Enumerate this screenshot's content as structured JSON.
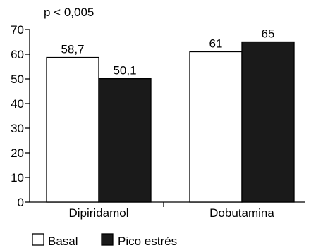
{
  "chart_data": {
    "type": "bar",
    "title": "",
    "annotation": "p < 0,005",
    "xlabel": "",
    "ylabel": "",
    "categories": [
      "Dipiridamol",
      "Dobutamina"
    ],
    "series": [
      {
        "name": "Basal",
        "values": [
          58.7,
          61
        ],
        "labels": [
          "58,7",
          "61"
        ],
        "color": "#ffffff"
      },
      {
        "name": "Pico estrés",
        "values": [
          50.1,
          65
        ],
        "labels": [
          "50,1",
          "65"
        ],
        "color": "#1a1a1a"
      }
    ],
    "ylim": [
      0,
      70
    ],
    "yticks": [
      0,
      10,
      20,
      30,
      40,
      50,
      60,
      70
    ],
    "grid": false,
    "legend_position": "bottom-left"
  }
}
